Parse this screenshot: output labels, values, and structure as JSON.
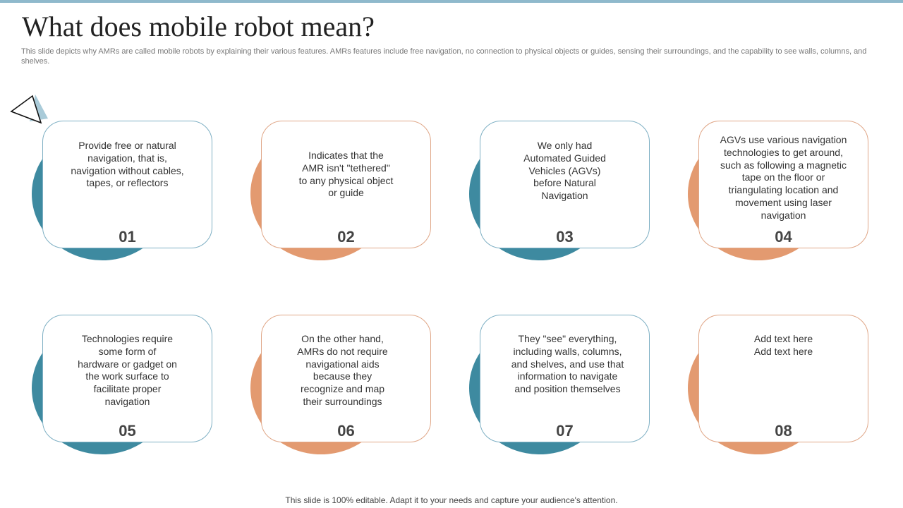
{
  "title": "What does mobile robot mean?",
  "subtitle": "This slide depicts why AMRs  are called mobile robots by explaining their various features. AMRs  features include free navigation, no connection to physical objects or guides, sensing their surroundings, and the capability to  see walls, columns, and shelves.",
  "footer": "This slide is 100% editable. Adapt it to your needs and capture your audience's attention.",
  "colors": {
    "blue_accent": "#3e8aa0",
    "orange_accent": "#e39a70",
    "top_bar": "#8fb9cc"
  },
  "cards": [
    {
      "number": "01",
      "text": "Provide free or natural navigation, that is, navigation without cables, tapes, or reflectors",
      "accent": "blue"
    },
    {
      "number": "02",
      "text": "Indicates that the AMR isn't \"tethered\" to any physical object or guide",
      "accent": "orange"
    },
    {
      "number": "03",
      "text": "We only had Automated Guided Vehicles (AGVs) before Natural Navigation",
      "accent": "blue"
    },
    {
      "number": "04",
      "text": "AGVs use various navigation technologies to get around, such as following a magnetic tape on the floor or triangulating location and movement using laser navigation",
      "accent": "orange"
    },
    {
      "number": "05",
      "text": "Technologies require some form of hardware or gadget on the work surface to facilitate proper navigation",
      "accent": "blue"
    },
    {
      "number": "06",
      "text": "On the other hand, AMRs do not require navigational aids because they recognize and map their surroundings",
      "accent": "orange"
    },
    {
      "number": "07",
      "text": "They \"see\" everything, including walls, columns, and shelves, and use that information to navigate and position themselves",
      "accent": "blue"
    },
    {
      "number": "08",
      "text": "Add text here Add text here",
      "accent": "orange"
    }
  ]
}
